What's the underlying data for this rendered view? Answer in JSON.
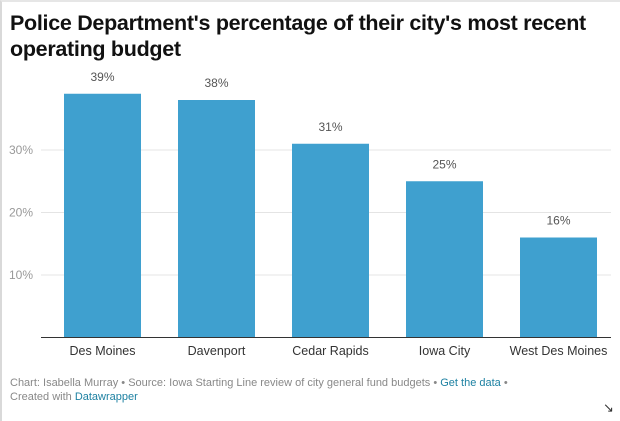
{
  "chart_data": {
    "type": "bar",
    "title": "Police Department's percentage of their city's most recent operating budget",
    "categories": [
      "Des Moines",
      "Davenport",
      "Cedar Rapids",
      "Iowa City",
      "West Des Moines"
    ],
    "values": [
      39,
      38,
      31,
      25,
      16
    ],
    "value_labels": [
      "39%",
      "38%",
      "31%",
      "25%",
      "16%"
    ],
    "xlabel": "",
    "ylabel": "",
    "ylim": [
      0,
      40
    ],
    "yticks": [
      10,
      20,
      30
    ],
    "ytick_labels": [
      "10%",
      "20%",
      "30%"
    ],
    "grid": true,
    "bar_color": "#3fa0cf"
  },
  "footer": {
    "chart_credit": "Chart: Isabella Murray",
    "separator": " • ",
    "source": "Source: Iowa Starting Line review of city general fund budgets",
    "get_data_link": "Get the data",
    "created_with": "Created with ",
    "datawrapper_link": "Datawrapper"
  },
  "icons": {
    "resize": "↘"
  }
}
